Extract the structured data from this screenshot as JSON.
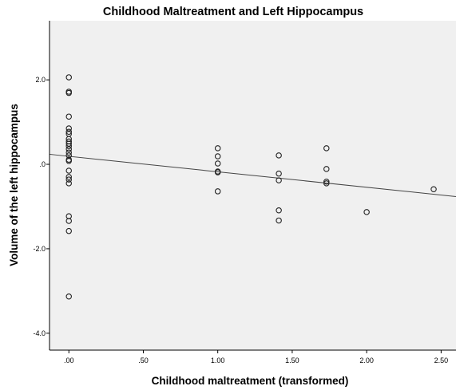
{
  "chart_data": {
    "type": "scatter",
    "title": "Childhood Maltreatment and Left Hippocampus",
    "xlabel": "Childhood maltreatment (transformed)",
    "ylabel": "Volume of the left hippocampus",
    "xlim": [
      -0.13,
      2.6
    ],
    "ylim": [
      -4.4,
      3.4
    ],
    "x_ticks": [
      {
        "value": 0,
        "label": ".00"
      },
      {
        "value": 0.5,
        "label": ".50"
      },
      {
        "value": 1.0,
        "label": "1.00"
      },
      {
        "value": 1.5,
        "label": "1.50"
      },
      {
        "value": 2.0,
        "label": "2.00"
      },
      {
        "value": 2.5,
        "label": "2.50"
      }
    ],
    "y_ticks": [
      {
        "value": 2.0,
        "label": "2.0"
      },
      {
        "value": 0.0,
        "label": ".0"
      },
      {
        "value": -2.0,
        "label": "-2.0"
      },
      {
        "value": -4.0,
        "label": "-4.0"
      }
    ],
    "grid": false,
    "legend": "none",
    "colors": {
      "plot_background": "#f0f0f0",
      "marker_stroke": "#222222",
      "fit_line": "#444444",
      "frame": "#000000"
    },
    "fit_line": {
      "intercept": 0.19,
      "slope": -0.367
    },
    "points": [
      {
        "x": 0,
        "y": 2.06
      },
      {
        "x": 0,
        "y": 1.72
      },
      {
        "x": 0,
        "y": 1.69
      },
      {
        "x": 0,
        "y": 1.13
      },
      {
        "x": 0,
        "y": 0.85
      },
      {
        "x": 0,
        "y": 0.77
      },
      {
        "x": 0,
        "y": 0.72
      },
      {
        "x": 0,
        "y": 0.6
      },
      {
        "x": 0,
        "y": 0.54
      },
      {
        "x": 0,
        "y": 0.49
      },
      {
        "x": 0,
        "y": 0.43
      },
      {
        "x": 0,
        "y": 0.36
      },
      {
        "x": 0,
        "y": 0.28
      },
      {
        "x": 0,
        "y": 0.21
      },
      {
        "x": 0,
        "y": 0.11
      },
      {
        "x": 0,
        "y": 0.08
      },
      {
        "x": 0,
        "y": -0.15
      },
      {
        "x": 0,
        "y": -0.3
      },
      {
        "x": 0,
        "y": -0.36
      },
      {
        "x": 0,
        "y": -0.45
      },
      {
        "x": 0,
        "y": -1.23
      },
      {
        "x": 0,
        "y": -1.34
      },
      {
        "x": 0,
        "y": -1.58
      },
      {
        "x": 0,
        "y": -3.13
      },
      {
        "x": 1.0,
        "y": 0.38
      },
      {
        "x": 1.0,
        "y": 0.19
      },
      {
        "x": 1.0,
        "y": 0.02
      },
      {
        "x": 1.0,
        "y": -0.17
      },
      {
        "x": 1.0,
        "y": -0.19
      },
      {
        "x": 1.0,
        "y": -0.64
      },
      {
        "x": 1.41,
        "y": 0.21
      },
      {
        "x": 1.41,
        "y": -0.22
      },
      {
        "x": 1.41,
        "y": -0.38
      },
      {
        "x": 1.41,
        "y": -1.09
      },
      {
        "x": 1.41,
        "y": -1.33
      },
      {
        "x": 1.73,
        "y": 0.38
      },
      {
        "x": 1.73,
        "y": -0.11
      },
      {
        "x": 1.73,
        "y": -0.41
      },
      {
        "x": 1.73,
        "y": -0.45
      },
      {
        "x": 2.0,
        "y": -1.13
      },
      {
        "x": 2.45,
        "y": -0.59
      }
    ]
  }
}
